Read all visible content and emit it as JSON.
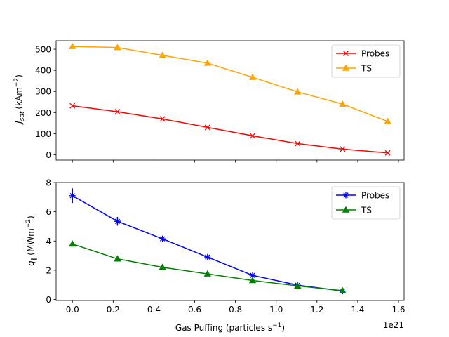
{
  "chart_data": [
    {
      "type": "line",
      "ylabel": "J_sat (kAm^-2)",
      "xlim": [
        -0.08,
        1.6275
      ],
      "ylim": [
        -25,
        540
      ],
      "xticks": [
        0.0,
        0.2,
        0.4,
        0.6,
        0.8,
        1.0,
        1.2,
        1.4,
        1.6
      ],
      "yticks": [
        0,
        100,
        200,
        300,
        400,
        500
      ],
      "legend": "upper-right",
      "series": [
        {
          "name": "Probes",
          "color": "#ff0000",
          "marker": "x",
          "x": [
            0.0,
            0.221,
            0.442,
            0.663,
            0.884,
            1.105,
            1.326,
            1.547
          ],
          "y": [
            232,
            204,
            170,
            130,
            90,
            53,
            27,
            9
          ]
        },
        {
          "name": "TS",
          "color": "#ffa500",
          "marker": "triangle",
          "x": [
            0.0,
            0.221,
            0.442,
            0.663,
            0.884,
            1.105,
            1.326,
            1.547
          ],
          "y": [
            513,
            508,
            471,
            434,
            367,
            298,
            240,
            158
          ]
        }
      ]
    },
    {
      "type": "line",
      "xlabel": "Gas Puffing (particles s^-1)",
      "ylabel": "q_∥ (MWm^-2)",
      "x_offset_label": "1e21",
      "xlim": [
        -0.08,
        1.6275
      ],
      "ylim": [
        -0.07,
        8.0
      ],
      "xticks": [
        0.0,
        0.2,
        0.4,
        0.6,
        0.8,
        1.0,
        1.2,
        1.4,
        1.6
      ],
      "yticks": [
        0,
        2,
        4,
        6,
        8
      ],
      "legend": "upper-right",
      "series": [
        {
          "name": "Probes",
          "color": "#0000ff",
          "marker": "star",
          "x": [
            0.0,
            0.221,
            0.442,
            0.663,
            0.884,
            1.105,
            1.326
          ],
          "y": [
            7.1,
            5.35,
            4.15,
            2.9,
            1.65,
            0.98,
            0.58
          ],
          "yerr": [
            0.5,
            0.3,
            0.15,
            0.1,
            0.08,
            0.08,
            0.08
          ]
        },
        {
          "name": "TS",
          "color": "#008000",
          "marker": "triangle",
          "x": [
            0.0,
            0.221,
            0.442,
            0.663,
            0.884,
            1.105,
            1.326
          ],
          "y": [
            3.8,
            2.78,
            2.2,
            1.75,
            1.3,
            0.93,
            0.6
          ]
        }
      ]
    }
  ],
  "labels": {
    "top_ylabel_main": "J",
    "top_ylabel_sub": "sat",
    "top_ylabel_unit_a": "(kAm",
    "top_ylabel_unit_sup": "−2",
    "top_ylabel_unit_b": ")",
    "bottom_ylabel_main": "q",
    "bottom_ylabel_sub": "∥",
    "bottom_ylabel_unit_a": "(MWm",
    "bottom_ylabel_unit_sup": "−2",
    "bottom_ylabel_unit_b": ")",
    "xlabel_a": "Gas Puffing (particles s",
    "xlabel_sup": "−1",
    "xlabel_b": ")",
    "offset": "1e21"
  }
}
